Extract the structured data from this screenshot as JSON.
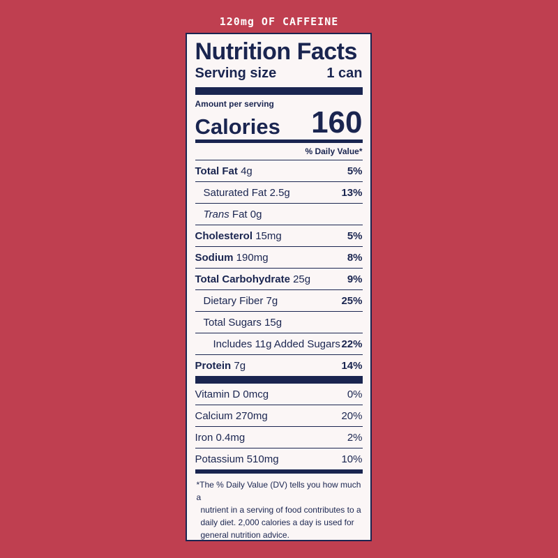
{
  "banner": "120mg OF CAFFEINE",
  "label": {
    "title": "Nutrition Facts",
    "serving_label": "Serving size",
    "serving_value": "1 can",
    "amount_per_serving": "Amount per serving",
    "calories_label": "Calories",
    "calories_value": "160",
    "dv_header": "% Daily Value*",
    "nutrients": [
      {
        "name": "Total Fat",
        "amount": "4g",
        "dv": "5%"
      },
      {
        "name": "Saturated Fat",
        "amount": "2.5g",
        "dv": "13%"
      },
      {
        "name": "Trans",
        "amount": "Fat 0g",
        "dv": ""
      },
      {
        "name": "Cholesterol",
        "amount": "15mg",
        "dv": "5%"
      },
      {
        "name": "Sodium",
        "amount": "190mg",
        "dv": "8%"
      },
      {
        "name": "Total Carbohydrate",
        "amount": "25g",
        "dv": "9%"
      },
      {
        "name": "Dietary Fiber",
        "amount": "7g",
        "dv": "25%"
      },
      {
        "name": "Total Sugars",
        "amount": "15g",
        "dv": ""
      },
      {
        "name": "Includes 11g Added Sugars",
        "amount": "",
        "dv": "22%"
      },
      {
        "name": "Protein",
        "amount": "7g",
        "dv": "14%"
      }
    ],
    "vitamins": [
      {
        "name": "Vitamin D 0mcg",
        "dv": "0%"
      },
      {
        "name": "Calcium 270mg",
        "dv": "20%"
      },
      {
        "name": "Iron 0.4mg",
        "dv": "2%"
      },
      {
        "name": "Potassium 510mg",
        "dv": "10%"
      }
    ],
    "footnote_line1": "*The % Daily Value (DV) tells you how much a",
    "footnote_line2": "nutrient in a serving of food contributes to a",
    "footnote_line3": "daily diet. 2,000 calories a day is used for",
    "footnote_line4": "general nutrition advice."
  }
}
